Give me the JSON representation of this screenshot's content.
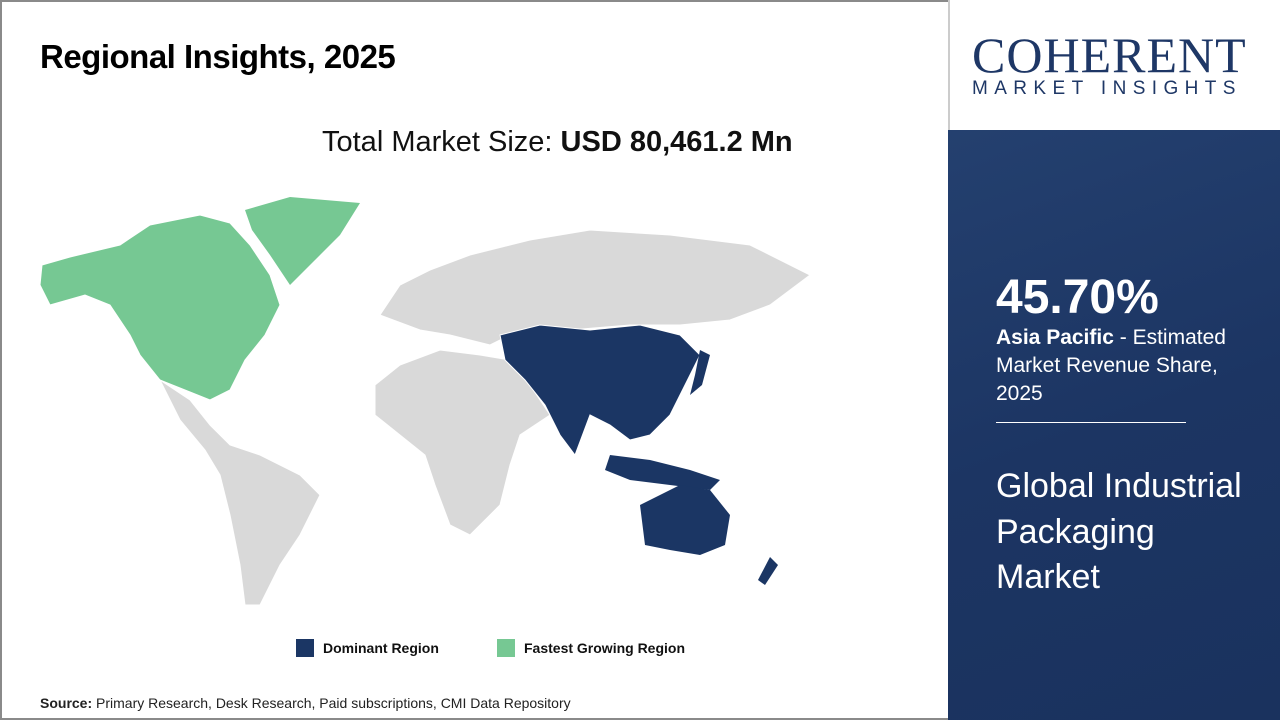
{
  "title": "Regional Insights, 2025",
  "total_label": "Total Market Size: ",
  "total_value": "USD 80,461.2 Mn",
  "legend": [
    {
      "label": "Dominant Region",
      "color": "#1b3664"
    },
    {
      "label": "Fastest Growing Region",
      "color": "#76c893"
    }
  ],
  "source_label": "Source:",
  "source_text": " Primary Research, Desk Research, Paid subscriptions, CMI Data Repository",
  "logo": {
    "main": "COHERENT",
    "sub": "MARKET INSIGHTS"
  },
  "highlight": {
    "percent": "45.70%",
    "region": "Asia Pacific",
    "desc": " - Estimated Market Revenue Share, 2025"
  },
  "market_name": "Global Industrial Packaging Market",
  "colors": {
    "other": "#d9d9d9",
    "panel": "#1f3a68"
  }
}
